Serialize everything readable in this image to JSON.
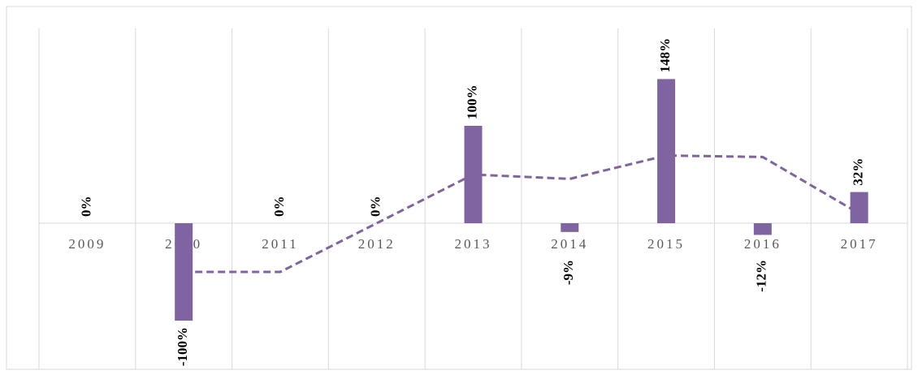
{
  "chart_data": {
    "type": "bar",
    "categories": [
      "2009",
      "2010",
      "2011",
      "2012",
      "2013",
      "2014",
      "2015",
      "2016",
      "2017"
    ],
    "series": [
      {
        "type": "bar",
        "color": "#8064a2",
        "values": [
          0,
          -100,
          0,
          0,
          100,
          -9,
          148,
          -12,
          32
        ],
        "value_labels": [
          "0%",
          "-100%",
          "0%",
          "0%",
          "100%",
          "-9%",
          "148%",
          "-12%",
          "32%"
        ]
      },
      {
        "type": "line",
        "color": "#8064a2",
        "dashed": true,
        "values": [
          null,
          -50,
          -50,
          0,
          50,
          45.5,
          69.5,
          68,
          10
        ]
      }
    ],
    "ylim": [
      -150,
      200
    ]
  }
}
